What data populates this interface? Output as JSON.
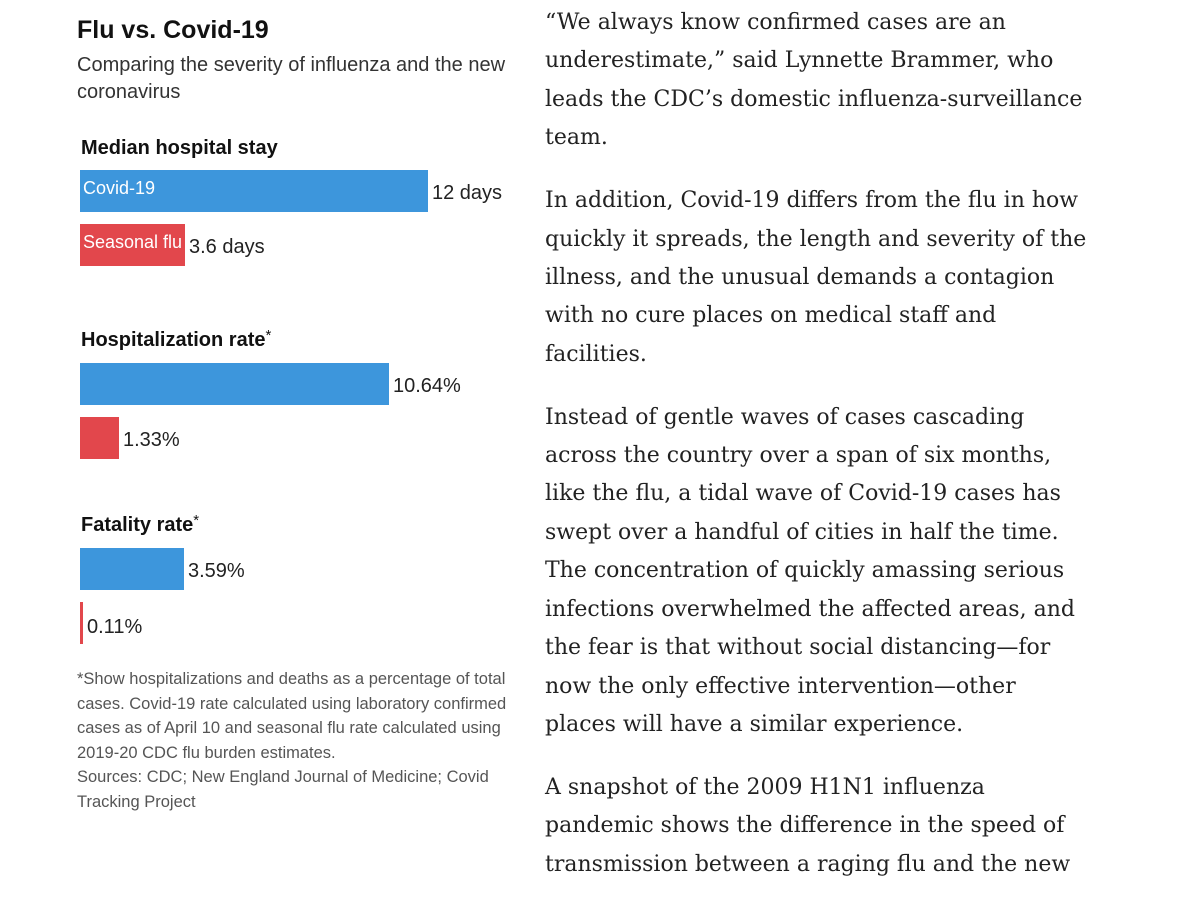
{
  "chart": {
    "title": "Flu vs. Covid-19",
    "subtitle": "Comparing the severity of influenza and the new coronavirus",
    "colors": {
      "covid": "#3d96dc",
      "flu": "#e2474c"
    },
    "note": "*Show hospitalizations and deaths as a percentage of total cases. Covid-19 rate calculated using laboratory confirmed cases as of April 10 and seasonal flu rate calculated using 2019-20 CDC flu burden estimates.",
    "sources": "Sources: CDC; New England Journal of Medicine; Covid Tracking Project"
  },
  "chart_data": [
    {
      "type": "bar",
      "title": "Median hospital stay",
      "title_marker": "",
      "categories": [
        "Covid-19",
        "Seasonal flu"
      ],
      "values": [
        12,
        3.6
      ],
      "value_labels": [
        "12 days",
        "3.6 days"
      ],
      "max": 12
    },
    {
      "type": "bar",
      "title": "Hospitalization rate",
      "title_marker": "*",
      "categories": [
        "Covid-19",
        "Seasonal flu"
      ],
      "values": [
        10.64,
        1.33
      ],
      "value_labels": [
        "10.64%",
        "1.33%"
      ],
      "max": 12
    },
    {
      "type": "bar",
      "title": "Fatality rate",
      "title_marker": "*",
      "categories": [
        "Covid-19",
        "Seasonal flu"
      ],
      "values": [
        3.59,
        0.11
      ],
      "value_labels": [
        "3.59%",
        "0.11%"
      ],
      "max": 12
    }
  ],
  "article": {
    "paragraphs": [
      [
        "“We always know confirmed cases are an",
        "underestimate,” said Lynnette Brammer, who",
        "leads the CDC’s domestic influenza-surveillance",
        "team."
      ],
      [
        "In addition, Covid-19 differs from the flu in how",
        "quickly it spreads, the length and severity of the",
        "illness, and the unusual demands a contagion",
        "with no cure places on medical staff and",
        "facilities."
      ],
      [
        "Instead of gentle waves of cases cascading",
        "across the country over a span of six months,",
        "like the flu, a tidal wave of Covid-19 cases has",
        "swept over a handful of cities in half the time.",
        "The concentration of quickly amassing serious",
        "infections overwhelmed the affected areas, and",
        "the fear is that without social distancing—for",
        "now the only effective intervention—other",
        "places will have a similar experience."
      ],
      [
        "A snapshot of the 2009 H1N1 influenza",
        "pandemic shows the difference in the speed of",
        "transmission between a raging flu and the new"
      ]
    ]
  }
}
